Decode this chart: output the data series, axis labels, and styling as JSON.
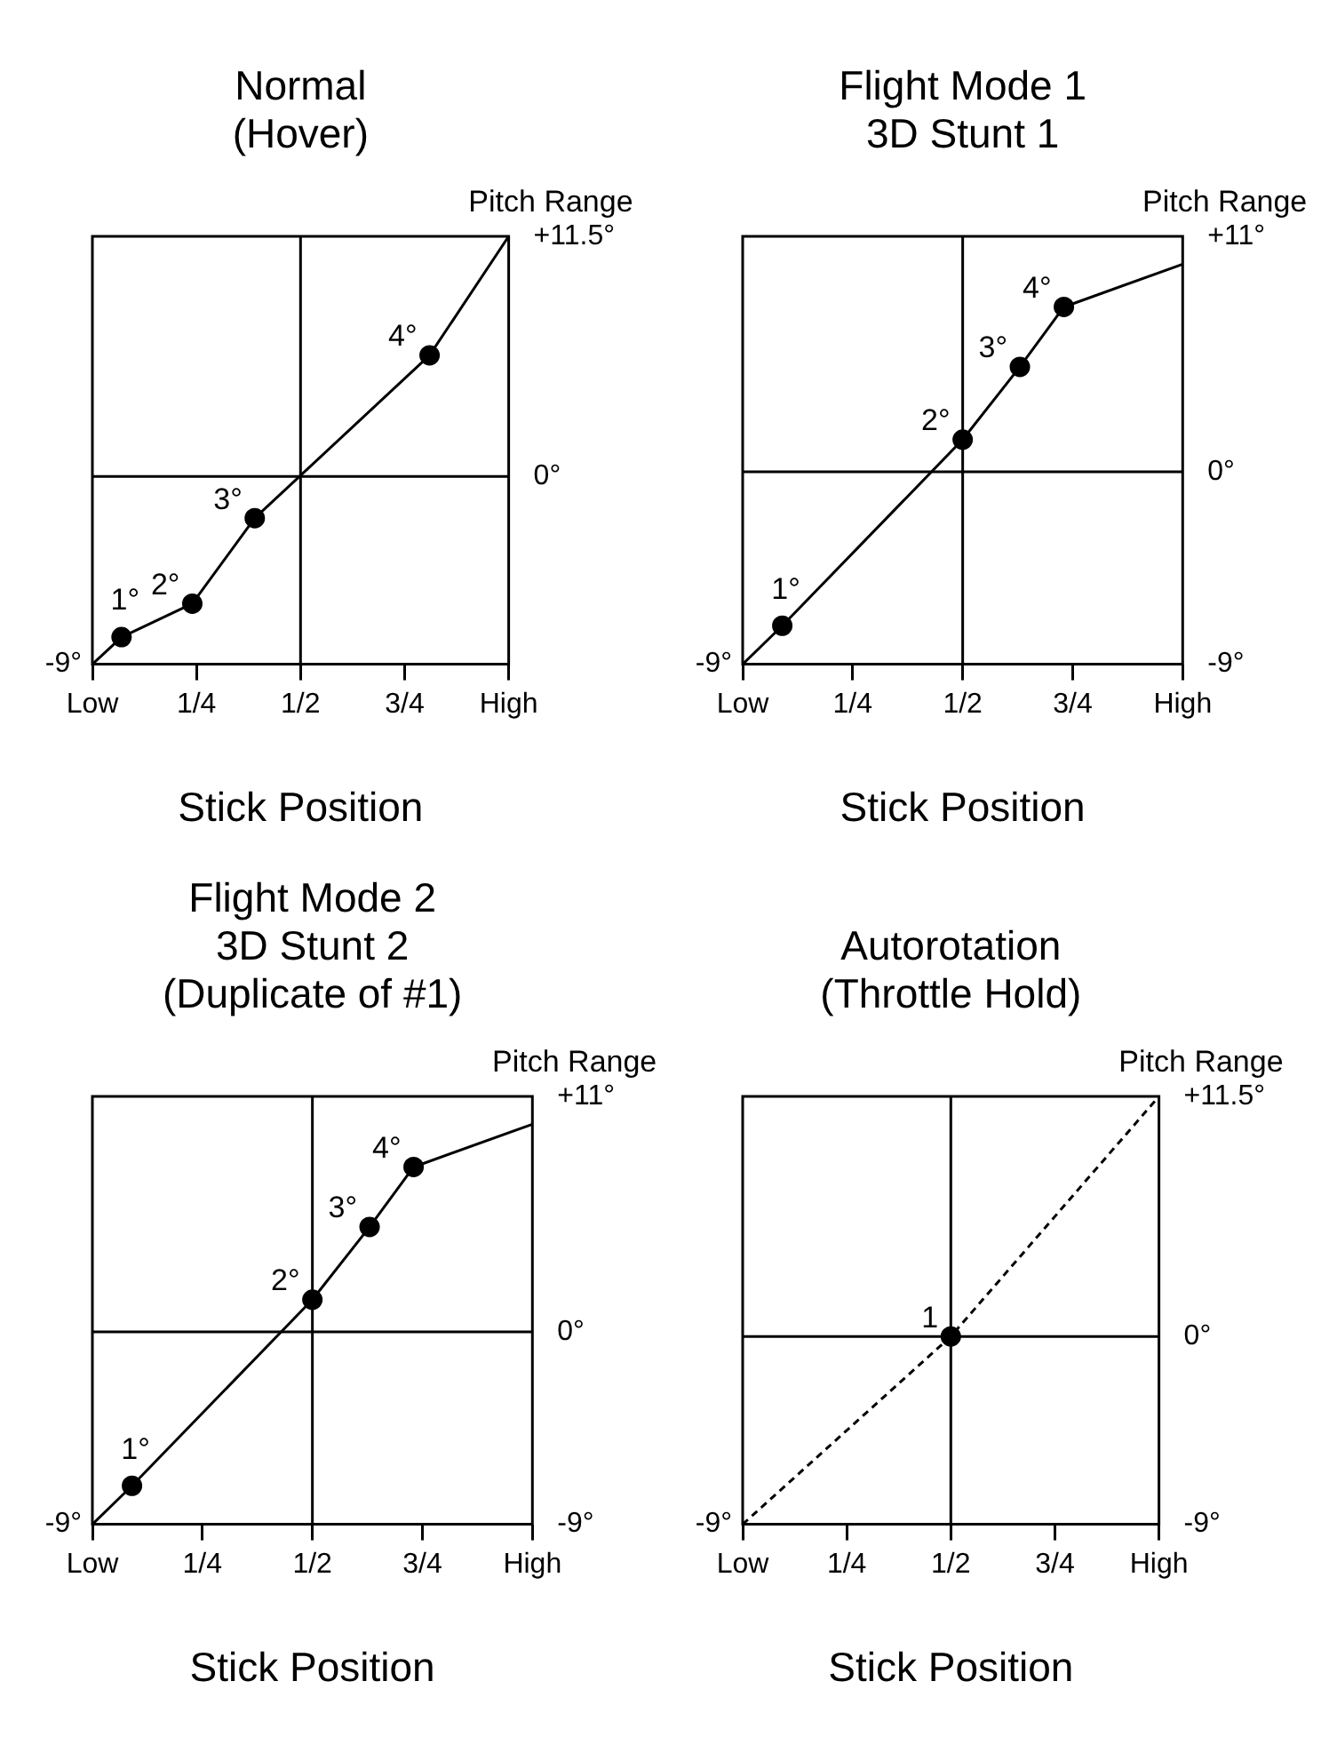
{
  "chart_data": [
    {
      "type": "line",
      "title": "Normal\n(Hover)",
      "xlabel": "Stick Position",
      "ylabel": "Pitch Range",
      "xlim": [
        0,
        1
      ],
      "xticks": [
        {
          "value": 0,
          "label": "Low"
        },
        {
          "value": 0.25,
          "label": "1/4"
        },
        {
          "value": 0.5,
          "label": "1/2"
        },
        {
          "value": 0.75,
          "label": "3/4"
        },
        {
          "value": 1,
          "label": "High"
        }
      ],
      "ylim": [
        -9,
        11.5
      ],
      "yticks": [
        {
          "value": 11.5,
          "label": "+11.5°"
        },
        {
          "value": 0,
          "label": "0°"
        }
      ],
      "ref_lines": [
        {
          "axis": "x",
          "value": 0.5
        },
        {
          "axis": "y",
          "value": 0
        }
      ],
      "series": [
        {
          "type": "line",
          "color": "#000000",
          "marker": "none",
          "line_style": "solid",
          "x": [
            0,
            0.07,
            0.24,
            0.39,
            0.81,
            1
          ],
          "values": [
            -9,
            -7.7,
            -6.1,
            -2,
            5.8,
            11.5
          ]
        },
        {
          "type": "scatter",
          "color": "#000000",
          "marker": "circle",
          "x": [
            0.07,
            0.24,
            0.39,
            0.81
          ],
          "values": [
            -7.7,
            -6.1,
            -2,
            5.8
          ]
        }
      ],
      "annotations": [
        "-9°",
        {
          "text": "1°",
          "x": 0.07,
          "y": -7.7
        },
        {
          "text": "2°",
          "x": 0.24,
          "y": -6.1
        },
        {
          "text": "3°",
          "x": 0.39,
          "y": -2
        },
        {
          "text": "4°",
          "x": 0.81,
          "y": 5.8
        }
      ]
    },
    {
      "type": "line",
      "title": "Flight Mode 1\n3D Stunt 1",
      "xlabel": "Stick Position",
      "ylabel": "Pitch Range",
      "xlim": [
        0,
        1
      ],
      "xticks": [
        {
          "value": 0,
          "label": "Low"
        },
        {
          "value": 0.25,
          "label": "1/4"
        },
        {
          "value": 0.5,
          "label": "1/2"
        },
        {
          "value": 0.75,
          "label": "3/4"
        },
        {
          "value": 1,
          "label": "High"
        }
      ],
      "ylim": [
        -9,
        11
      ],
      "yticks": [
        {
          "value": 11,
          "label": "+11°"
        },
        {
          "value": 0,
          "label": "0°"
        },
        {
          "value": -9,
          "label": "-9°"
        }
      ],
      "ref_lines": [
        {
          "axis": "x",
          "value": 0.5
        },
        {
          "axis": "y",
          "value": 0
        }
      ],
      "series": [
        {
          "type": "line",
          "color": "#000000",
          "marker": "none",
          "line_style": "solid",
          "x": [
            0,
            0.09,
            0.5,
            0.63,
            0.73,
            1
          ],
          "values": [
            -9,
            -7.2,
            1.5,
            4.9,
            7.7,
            9.7
          ]
        },
        {
          "type": "scatter",
          "color": "#000000",
          "marker": "circle",
          "x": [
            0.09,
            0.5,
            0.63,
            0.73
          ],
          "values": [
            -7.2,
            1.5,
            4.9,
            7.7
          ]
        }
      ],
      "annotations": [
        "-9°",
        {
          "text": "1°",
          "x": 0.09,
          "y": -7.2
        },
        {
          "text": "2°",
          "x": 0.5,
          "y": 1.5
        },
        {
          "text": "3°",
          "x": 0.63,
          "y": 4.9
        },
        {
          "text": "4°",
          "x": 0.73,
          "y": 7.7
        }
      ]
    },
    {
      "type": "line",
      "title": "Flight Mode 2\n3D Stunt 2\n(Duplicate of #1)",
      "xlabel": "Stick Position",
      "ylabel": "Pitch Range",
      "xlim": [
        0,
        1
      ],
      "xticks": [
        {
          "value": 0,
          "label": "Low"
        },
        {
          "value": 0.25,
          "label": "1/4"
        },
        {
          "value": 0.5,
          "label": "1/2"
        },
        {
          "value": 0.75,
          "label": "3/4"
        },
        {
          "value": 1,
          "label": "High"
        }
      ],
      "ylim": [
        -9,
        11
      ],
      "yticks": [
        {
          "value": 11,
          "label": "+11°"
        },
        {
          "value": 0,
          "label": "0°"
        },
        {
          "value": -9,
          "label": "-9°"
        }
      ],
      "ref_lines": [
        {
          "axis": "x",
          "value": 0.5
        },
        {
          "axis": "y",
          "value": 0
        }
      ],
      "series": [
        {
          "type": "line",
          "color": "#000000",
          "marker": "none",
          "line_style": "solid",
          "x": [
            0,
            0.09,
            0.5,
            0.63,
            0.73,
            1
          ],
          "values": [
            -9,
            -7.2,
            1.5,
            4.9,
            7.7,
            9.7
          ]
        },
        {
          "type": "scatter",
          "color": "#000000",
          "marker": "circle",
          "x": [
            0.09,
            0.5,
            0.63,
            0.73
          ],
          "values": [
            -7.2,
            1.5,
            4.9,
            7.7
          ]
        }
      ],
      "annotations": [
        "-9°",
        {
          "text": "1°",
          "x": 0.09,
          "y": -7.2
        },
        {
          "text": "2°",
          "x": 0.5,
          "y": 1.5
        },
        {
          "text": "3°",
          "x": 0.63,
          "y": 4.9
        },
        {
          "text": "4°",
          "x": 0.73,
          "y": 7.7
        }
      ]
    },
    {
      "type": "line",
      "title": "Autorotation\n(Throttle Hold)",
      "xlabel": "Stick Position",
      "ylabel": "Pitch Range",
      "xlim": [
        0,
        1
      ],
      "xticks": [
        {
          "value": 0,
          "label": "Low"
        },
        {
          "value": 0.25,
          "label": "1/4"
        },
        {
          "value": 0.5,
          "label": "1/2"
        },
        {
          "value": 0.75,
          "label": "3/4"
        },
        {
          "value": 1,
          "label": "High"
        }
      ],
      "ylim": [
        -9,
        11.5
      ],
      "yticks": [
        {
          "value": 11.5,
          "label": "+11.5°"
        },
        {
          "value": 0,
          "label": "0°"
        },
        {
          "value": -9,
          "label": "-9°"
        }
      ],
      "ref_lines": [
        {
          "axis": "x",
          "value": 0.5
        },
        {
          "axis": "y",
          "value": 0
        }
      ],
      "series": [
        {
          "type": "line",
          "color": "#000000",
          "marker": "none",
          "line_style": "dashed",
          "x": [
            0,
            0.5,
            1
          ],
          "values": [
            -9,
            0,
            11.5
          ]
        },
        {
          "type": "scatter",
          "color": "#000000",
          "marker": "circle",
          "x": [
            0.5
          ],
          "values": [
            0
          ]
        }
      ],
      "annotations": [
        "-9°",
        {
          "text": "1",
          "x": 0.5,
          "y": 0
        }
      ]
    }
  ]
}
